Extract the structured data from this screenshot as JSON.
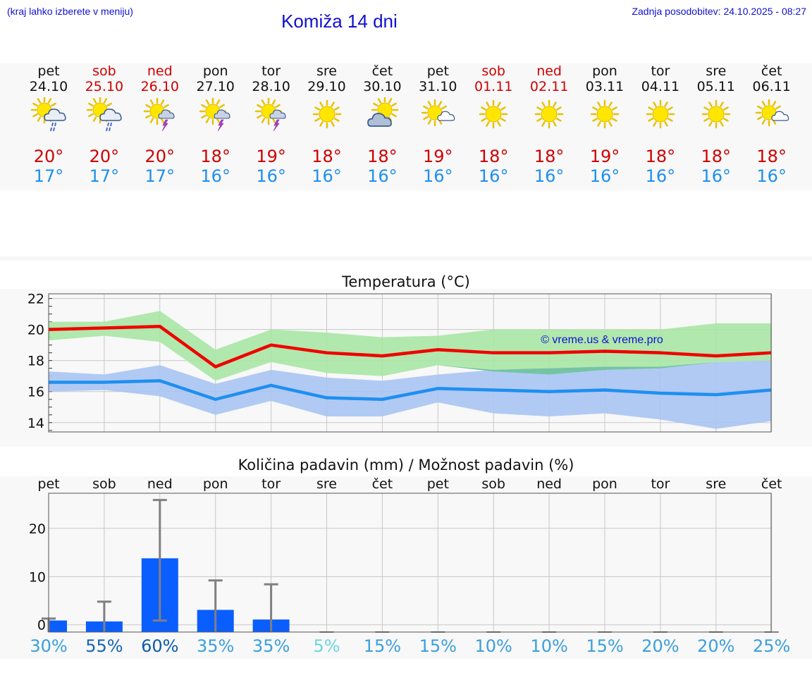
{
  "header": {
    "left_note": "(kraj lahko izberete v meniju)",
    "title": "Komiža 14 dni",
    "updated": "Zadnja posodobitev: 24.10.2025 - 08:27"
  },
  "colors": {
    "max_line": "#f00000",
    "min_line": "#1e8ff0",
    "max_band": "#a8e6a4",
    "min_band": "#a9c4f2",
    "overlap_band": "#74c4a4",
    "rain_bar": "#0a5eff",
    "errorbar": "#808080",
    "weekend_text": "#d00000",
    "link_text": "#1010d0"
  },
  "days": [
    {
      "name": "pet",
      "date": "24.10",
      "weekend": false,
      "icon": "sun-cloud-rain-icon",
      "tmax": "20°",
      "tmin": "17°"
    },
    {
      "name": "sob",
      "date": "25.10",
      "weekend": true,
      "icon": "sun-cloud-rain-icon",
      "tmax": "20°",
      "tmin": "17°"
    },
    {
      "name": "ned",
      "date": "26.10",
      "weekend": true,
      "icon": "sun-thunder-icon",
      "tmax": "20°",
      "tmin": "17°"
    },
    {
      "name": "pon",
      "date": "27.10",
      "weekend": false,
      "icon": "sun-thunder-icon",
      "tmax": "18°",
      "tmin": "16°"
    },
    {
      "name": "tor",
      "date": "28.10",
      "weekend": false,
      "icon": "sun-thunder-icon",
      "tmax": "19°",
      "tmin": "16°"
    },
    {
      "name": "sre",
      "date": "29.10",
      "weekend": false,
      "icon": "sun-icon",
      "tmax": "18°",
      "tmin": "16°"
    },
    {
      "name": "čet",
      "date": "30.10",
      "weekend": false,
      "icon": "sun-cloud-icon",
      "tmax": "18°",
      "tmin": "16°"
    },
    {
      "name": "pet",
      "date": "31.10",
      "weekend": false,
      "icon": "sun-small-cloud-icon",
      "tmax": "19°",
      "tmin": "16°"
    },
    {
      "name": "sob",
      "date": "01.11",
      "weekend": true,
      "icon": "sun-icon",
      "tmax": "18°",
      "tmin": "16°"
    },
    {
      "name": "ned",
      "date": "02.11",
      "weekend": true,
      "icon": "sun-icon",
      "tmax": "18°",
      "tmin": "16°"
    },
    {
      "name": "pon",
      "date": "03.11",
      "weekend": false,
      "icon": "sun-icon",
      "tmax": "19°",
      "tmin": "16°"
    },
    {
      "name": "tor",
      "date": "04.11",
      "weekend": false,
      "icon": "sun-icon",
      "tmax": "18°",
      "tmin": "16°"
    },
    {
      "name": "sre",
      "date": "05.11",
      "weekend": false,
      "icon": "sun-icon",
      "tmax": "18°",
      "tmin": "16°"
    },
    {
      "name": "čet",
      "date": "06.11",
      "weekend": false,
      "icon": "sun-small-cloud-icon",
      "tmax": "18°",
      "tmin": "16°"
    }
  ],
  "chart_data": [
    {
      "type": "line",
      "title": "Temperatura (°C)",
      "watermark": "© vreme.us & vreme.pro",
      "ylim": [
        13.4,
        22.3
      ],
      "yticks": [
        "14",
        "16",
        "18",
        "20",
        "22"
      ],
      "x": [
        0,
        1,
        2,
        3,
        4,
        5,
        6,
        7,
        8,
        9,
        10,
        11,
        12,
        13
      ],
      "series": [
        {
          "name": "max",
          "values": [
            20.0,
            20.1,
            20.2,
            17.6,
            19.0,
            18.5,
            18.3,
            18.7,
            18.5,
            18.5,
            18.6,
            18.5,
            18.3,
            18.5
          ],
          "band_low": [
            19.3,
            19.6,
            19.2,
            16.7,
            17.9,
            17.2,
            17.0,
            17.7,
            17.3,
            17.1,
            17.4,
            17.5,
            17.9,
            18.0
          ],
          "band_high": [
            20.5,
            20.5,
            21.2,
            18.7,
            20.0,
            19.8,
            19.5,
            19.6,
            20.0,
            20.0,
            20.0,
            20.0,
            20.4,
            20.4
          ]
        },
        {
          "name": "min",
          "values": [
            16.6,
            16.6,
            16.7,
            15.5,
            16.4,
            15.6,
            15.5,
            16.2,
            16.1,
            16.0,
            16.1,
            15.9,
            15.8,
            16.1
          ],
          "band_low": [
            16.0,
            16.1,
            15.7,
            14.5,
            15.4,
            14.4,
            14.4,
            15.3,
            14.6,
            14.4,
            14.6,
            14.2,
            13.6,
            14.1
          ],
          "band_high": [
            17.3,
            17.1,
            17.7,
            16.5,
            17.4,
            16.9,
            16.7,
            17.1,
            17.4,
            17.5,
            17.6,
            17.6,
            17.9,
            18.0
          ]
        }
      ]
    },
    {
      "type": "bar",
      "title": "Količina padavin (mm) / Možnost padavin (%)",
      "categories": [
        "pet",
        "sob",
        "ned",
        "pon",
        "tor",
        "sre",
        "čet",
        "pet",
        "sob",
        "ned",
        "pon",
        "tor",
        "sre",
        "čet"
      ],
      "values": [
        0.9,
        0.7,
        13.8,
        3.1,
        1.1,
        0,
        0,
        0,
        0,
        0,
        0,
        0,
        0,
        0
      ],
      "error_high": [
        1.3,
        4.8,
        25.9,
        9.2,
        8.4,
        0,
        0,
        0,
        0,
        0,
        0,
        0,
        0,
        0
      ],
      "error_low": [
        0,
        0,
        0.9,
        0,
        0,
        0,
        0,
        0,
        0,
        0,
        0,
        0,
        0,
        0
      ],
      "ylim": [
        -1.5,
        27.3
      ],
      "yticks": [
        "0",
        "10",
        "20"
      ],
      "probability": [
        "30%",
        "55%",
        "60%",
        "35%",
        "35%",
        "5%",
        "15%",
        "15%",
        "10%",
        "10%",
        "15%",
        "20%",
        "20%",
        "25%"
      ],
      "probability_colors": [
        "#3a9fdc",
        "#1565b5",
        "#0d5ab0",
        "#3a9fdc",
        "#3a9fdc",
        "#6dd6e0",
        "#3a9fdc",
        "#3a9fdc",
        "#3a9fdc",
        "#3a9fdc",
        "#3a9fdc",
        "#3a9fdc",
        "#3a9fdc",
        "#3a9fdc"
      ]
    }
  ]
}
